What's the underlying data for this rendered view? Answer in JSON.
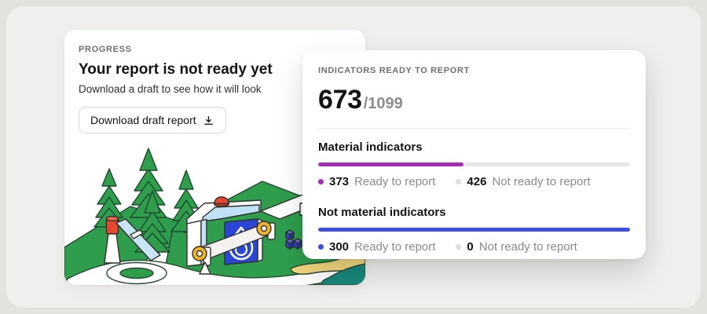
{
  "colors": {
    "page_bg": "#E4E2DF",
    "panel_bg": "#F0EFED",
    "material_accent": "#A62BB8",
    "not_material_accent": "#3D4FE3",
    "inactive_dot": "#DEDEDE"
  },
  "progress_card": {
    "eyebrow": "PROGRESS",
    "title": "Your report is not ready yet",
    "subtitle": "Download a draft to see how it will look",
    "button_label": "Download draft report"
  },
  "indicators_card": {
    "eyebrow": "INDICATORS READY TO REPORT",
    "summary": {
      "ready_display": "673",
      "total_display": "/1099"
    },
    "sections": [
      {
        "title": "Material indicators",
        "accent": "#A62BB8",
        "ready": 373,
        "ready_label": "Ready to report",
        "not_ready": 426,
        "not_ready_label": "Not ready to report"
      },
      {
        "title": "Not material indicators",
        "accent": "#3D4FE3",
        "ready": 300,
        "ready_label": "Ready to report",
        "not_ready": 0,
        "not_ready_label": "Not ready to report"
      }
    ]
  }
}
